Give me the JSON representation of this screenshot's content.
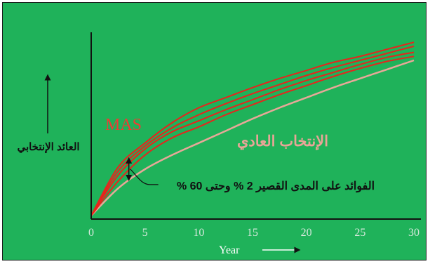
{
  "chart_data": {
    "type": "line",
    "x": [
      0,
      2.5,
      5,
      7.5,
      10,
      12.5,
      15,
      17.5,
      20,
      22.5,
      25,
      27.5,
      30
    ],
    "xticks": [
      "0",
      "5",
      "10",
      "15",
      "20",
      "25",
      "30"
    ],
    "xlim": [
      0,
      30
    ],
    "ylim": [
      0,
      100
    ],
    "xlabel": "Year",
    "ylabel": "العائد الإنتخابي",
    "series": [
      {
        "name": "MAS",
        "color": "#e8241c",
        "values": [
          0,
          24,
          36,
          46,
          53.5,
          58.5,
          63.5,
          68,
          72,
          76,
          79,
          82.5,
          86
        ]
      },
      {
        "name": "",
        "color": "#e8241c",
        "values": [
          0,
          22,
          34.5,
          43.5,
          50,
          55.5,
          60.5,
          65,
          69.5,
          73.5,
          77,
          80.5,
          84
        ]
      },
      {
        "name": "",
        "color": "#e8241c",
        "values": [
          0,
          20,
          33,
          41.5,
          47,
          52.5,
          57.5,
          62.5,
          67,
          71,
          75,
          78.5,
          81
        ]
      },
      {
        "name": "",
        "color": "#e8241c",
        "values": [
          0,
          17,
          30,
          38.5,
          44,
          50,
          55,
          60,
          64.5,
          69,
          73,
          76.5,
          79
        ]
      },
      {
        "name": "الإنتخاب العادي",
        "color": "#e8a898",
        "values": [
          0,
          13.5,
          23,
          30,
          36,
          42,
          48,
          53.5,
          58.5,
          63.5,
          68,
          72.5,
          77
        ]
      }
    ],
    "annotations": {
      "mas_label": "MAS",
      "normal_label": "الإنتخاب العادي",
      "benefit_label": "الفوائد على المدى القصير 2 % وحتى 60 %",
      "benefit_x": 3.5
    }
  }
}
